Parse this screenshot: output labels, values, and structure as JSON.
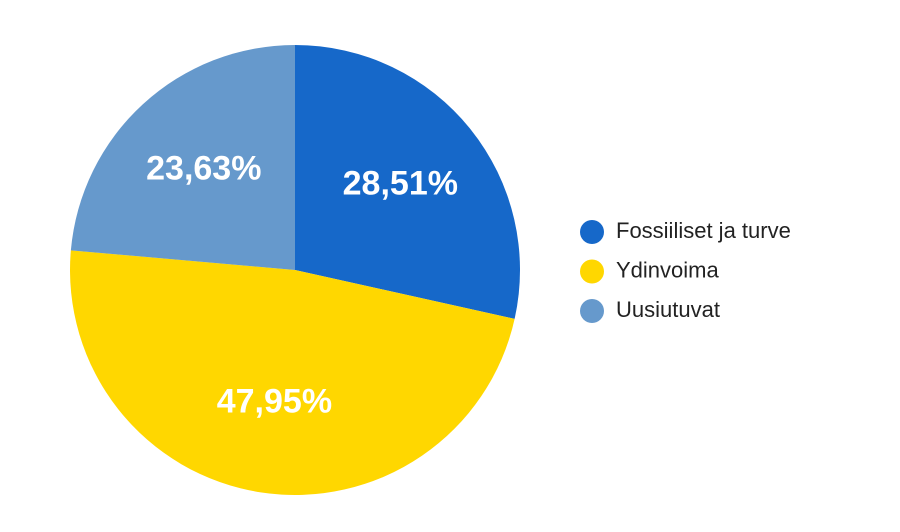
{
  "chart_data": {
    "type": "pie",
    "categories": [
      "Fossiiliset ja turve",
      "Ydinvoima",
      "Uusiutuvat"
    ],
    "values": [
      28.51,
      47.95,
      23.63
    ],
    "value_labels": [
      "28,51%",
      "47,95%",
      "23,63%"
    ],
    "colors": [
      "#1668c9",
      "#ffd700",
      "#6699cc"
    ],
    "legend": "right"
  }
}
